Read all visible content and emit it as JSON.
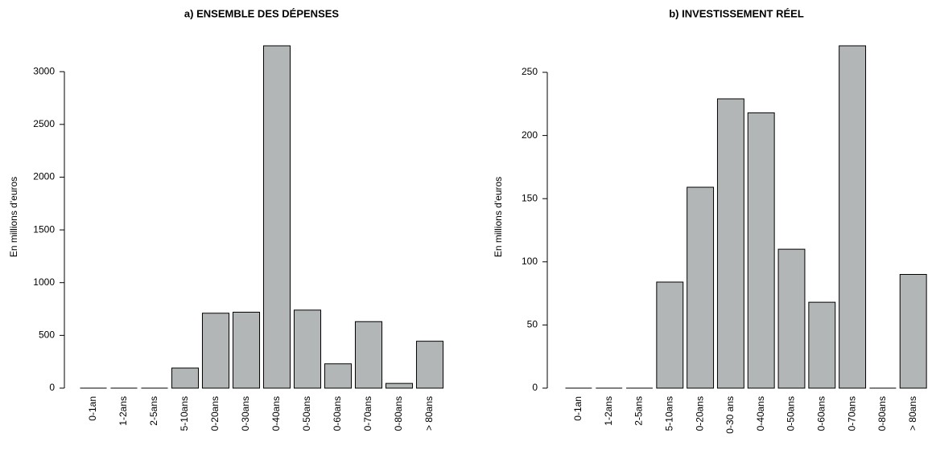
{
  "chart_data": [
    {
      "type": "bar",
      "title": "a) ENSEMBLE DES DÉPENSES",
      "y_label": "En millions d'euros",
      "categories": [
        "0-1an",
        "1-2ans",
        "2-5ans",
        "5-10ans",
        "0-20ans",
        "0-30ans",
        "0-40ans",
        "0-50ans",
        "0-60ans",
        "0-70ans",
        "0-80ans",
        "> 80ans"
      ],
      "values": [
        0,
        0,
        0,
        190,
        710,
        720,
        3245,
        740,
        230,
        630,
        45,
        445
      ],
      "color": "#b3b6b6",
      "ylim": [
        0,
        3245
      ],
      "yticks": [
        0,
        500,
        1000,
        1500,
        2000,
        2500,
        3000
      ]
    },
    {
      "type": "bar",
      "title": "b) INVESTISSEMENT RÉEL",
      "y_label": "En millions d'euros",
      "categories": [
        "0-1an",
        "1-2ans",
        "2-5ans",
        "5-10ans",
        "0-20ans",
        "0-30 ans",
        "0-40ans",
        "0-50ans",
        "0-60ans",
        "0-70ans",
        "0-80ans",
        "> 80ans"
      ],
      "values": [
        0,
        0,
        0,
        84,
        159,
        229,
        218,
        110,
        68,
        271,
        0,
        90
      ],
      "color": "#b3b6b6",
      "ylim": [
        0,
        271
      ],
      "yticks": [
        0,
        50,
        100,
        150,
        200,
        250
      ]
    }
  ]
}
